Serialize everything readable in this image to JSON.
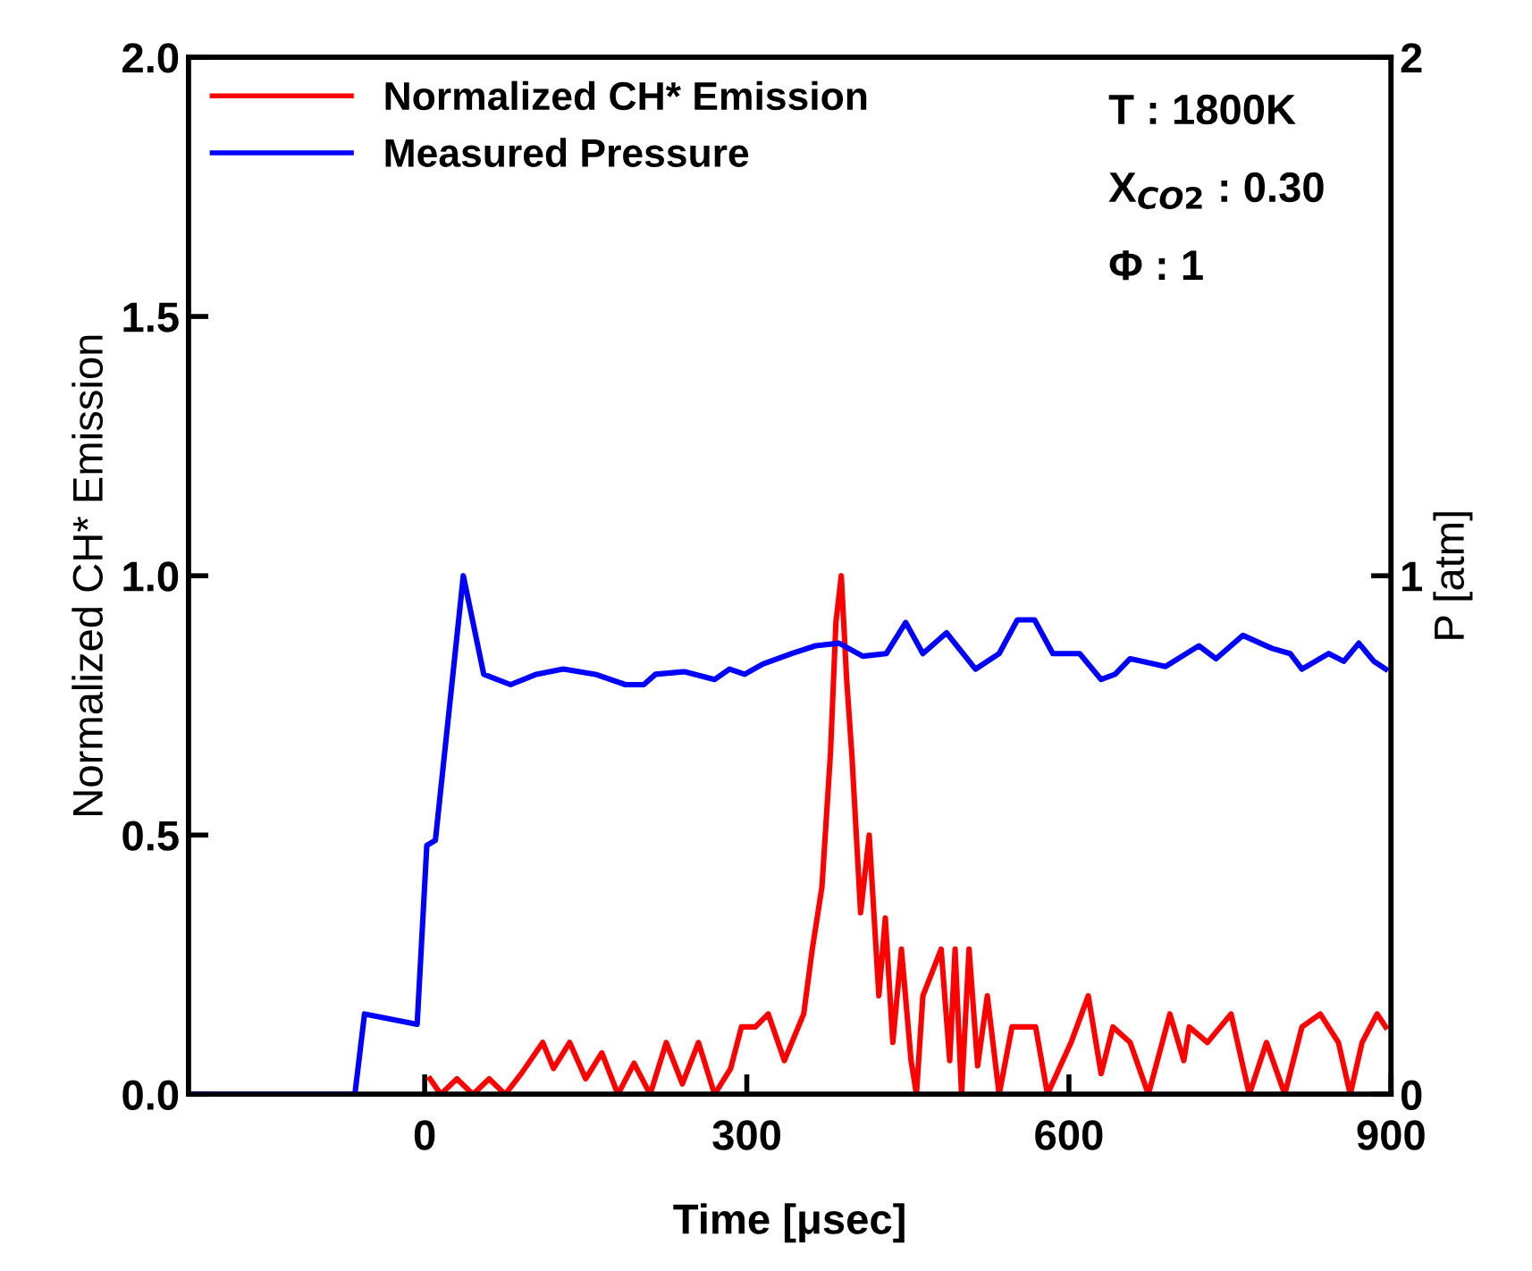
{
  "chart_data": {
    "type": "line",
    "xlabel": "Time [μsec]",
    "ylabel": "Normalized CH* Emission",
    "y2label": "P [atm]",
    "xlim": [
      -220,
      900
    ],
    "xticks": [
      0,
      300,
      600,
      900
    ],
    "ylim": [
      0,
      2
    ],
    "yticks": [
      {
        "value": 0,
        "label": "0.0"
      },
      {
        "value": 0.5,
        "label": "0.5"
      },
      {
        "value": 1,
        "label": "1.0"
      },
      {
        "value": 1.5,
        "label": "1.5"
      },
      {
        "value": 2,
        "label": "2.0"
      }
    ],
    "y2lim": [
      0,
      2
    ],
    "y2ticks": [
      0,
      1,
      2
    ],
    "legend": "top left",
    "grid": false,
    "annotations": [
      "T : 1800K",
      "X$_{CO2}$ : 0.30",
      "Φ : 1"
    ],
    "series": [
      {
        "name": "Normalized CH* Emission",
        "color": "#ff0000",
        "x": [
          5,
          15,
          30,
          45,
          60,
          75,
          90,
          110,
          120,
          135,
          150,
          165,
          180,
          195,
          210,
          225,
          240,
          255,
          270,
          285,
          295,
          308,
          320,
          335,
          353,
          361,
          370,
          378,
          383,
          388,
          393,
          398,
          406,
          414,
          423,
          429,
          436,
          444,
          453,
          458,
          464,
          481,
          489,
          494,
          500,
          507,
          515,
          524,
          535,
          547,
          569,
          580,
          602,
          618,
          630,
          641,
          657,
          674,
          694,
          707,
          712,
          729,
          751,
          768,
          784,
          801,
          817,
          834,
          851,
          862,
          873,
          887,
          895
        ],
        "values": [
          0.03,
          0,
          0.03,
          0,
          0.03,
          0,
          0.04,
          0.1,
          0.05,
          0.1,
          0.03,
          0.08,
          0,
          0.06,
          0,
          0.1,
          0.02,
          0.1,
          0,
          0.05,
          0.13,
          0.13,
          0.155,
          0.065,
          0.155,
          0.28,
          0.4,
          0.66,
          0.91,
          1.0,
          0.8,
          0.65,
          0.35,
          0.5,
          0.19,
          0.34,
          0.1,
          0.28,
          0.065,
          0,
          0.19,
          0.28,
          0.065,
          0.28,
          0,
          0.28,
          0.055,
          0.19,
          0,
          0.13,
          0.13,
          0,
          0.1,
          0.19,
          0.04,
          0.13,
          0.1,
          0,
          0.155,
          0.065,
          0.13,
          0.1,
          0.155,
          0,
          0.1,
          0,
          0.13,
          0.155,
          0.1,
          0,
          0.1,
          0.155,
          0.13
        ]
      },
      {
        "name": "Measured Pressure",
        "color": "#0000ff",
        "axis": "y2",
        "x": [
          -220,
          -65,
          -56,
          -7,
          2,
          10,
          36,
          55,
          80,
          104,
          129,
          159,
          187,
          204,
          215,
          242,
          270,
          284,
          298,
          315,
          342,
          364,
          386,
          408,
          430,
          448,
          464,
          486,
          513,
          535,
          552,
          568,
          585,
          610,
          630,
          643,
          657,
          690,
          721,
          737,
          762,
          789,
          806,
          817,
          842,
          856,
          870,
          884,
          895
        ],
        "values": [
          0,
          0,
          0.155,
          0.135,
          0.48,
          0.49,
          1.0,
          0.81,
          0.79,
          0.81,
          0.82,
          0.81,
          0.79,
          0.79,
          0.81,
          0.815,
          0.8,
          0.82,
          0.81,
          0.83,
          0.85,
          0.865,
          0.87,
          0.845,
          0.85,
          0.91,
          0.85,
          0.89,
          0.82,
          0.85,
          0.915,
          0.915,
          0.85,
          0.85,
          0.8,
          0.81,
          0.84,
          0.825,
          0.865,
          0.84,
          0.885,
          0.86,
          0.85,
          0.82,
          0.85,
          0.835,
          0.87,
          0.835,
          0.82
        ]
      }
    ]
  }
}
